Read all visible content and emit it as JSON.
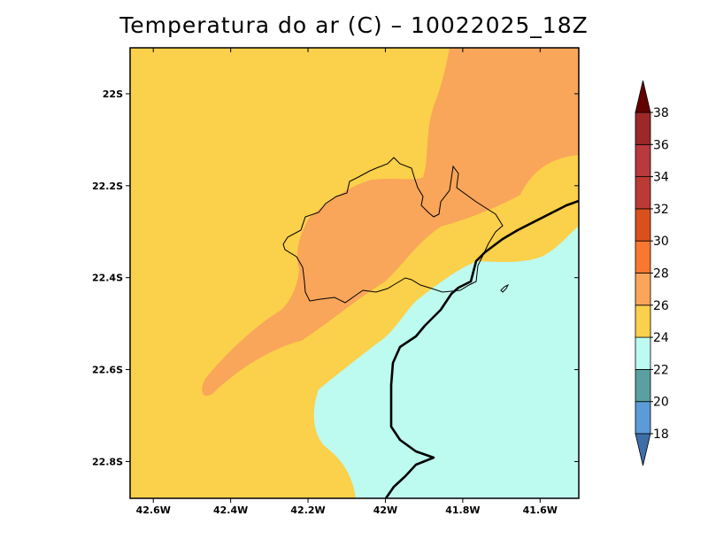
{
  "title": "Temperatura do ar (C) – 10022025_18Z",
  "map": {
    "lon_range": [
      -42.66,
      -41.5
    ],
    "lat_range": [
      -22.88,
      -21.9
    ],
    "lon_ticks": [
      {
        "value": -42.6,
        "label": "42.6W"
      },
      {
        "value": -42.4,
        "label": "42.4W"
      },
      {
        "value": -42.2,
        "label": "42.2W"
      },
      {
        "value": -42.0,
        "label": "42W"
      },
      {
        "value": -41.8,
        "label": "41.8W"
      },
      {
        "value": -41.6,
        "label": "41.6W"
      }
    ],
    "lat_ticks": [
      {
        "value": -22.0,
        "label": "22S"
      },
      {
        "value": -22.2,
        "label": "22.2S"
      },
      {
        "value": -22.4,
        "label": "22.4S"
      },
      {
        "value": -22.6,
        "label": "22.6S"
      },
      {
        "value": -22.8,
        "label": "22.8S"
      }
    ],
    "field_colors": {
      "22_24": "#bdfaf0",
      "24_26": "#fbd04a",
      "26_28": "#f9a55a"
    }
  },
  "colorbar": {
    "min": 18,
    "max": 38,
    "step": 2,
    "labels": [
      "18",
      "20",
      "22",
      "24",
      "26",
      "28",
      "30",
      "32",
      "34",
      "36",
      "38"
    ],
    "colors": [
      "#5c9bd8",
      "#5aa0a0",
      "#bdfaf0",
      "#fbd04a",
      "#f9a55a",
      "#f7782e",
      "#d9501c",
      "#bb3a35",
      "#b8393e",
      "#9c2828"
    ],
    "below_color": "#3e6ea8",
    "above_color": "#650000"
  }
}
